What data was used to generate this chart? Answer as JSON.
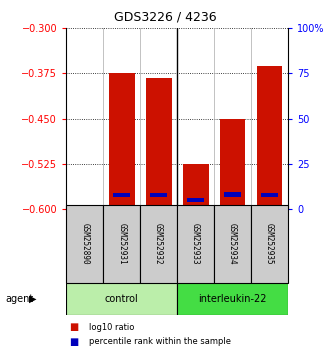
{
  "title": "GDS3226 / 4236",
  "samples": [
    "GSM252890",
    "GSM252931",
    "GSM252932",
    "GSM252933",
    "GSM252934",
    "GSM252935"
  ],
  "groups": [
    "control",
    "control",
    "control",
    "interleukin-22",
    "interleukin-22",
    "interleukin-22"
  ],
  "log10_ratio": [
    -0.598,
    -0.375,
    -0.382,
    -0.525,
    -0.45,
    -0.362
  ],
  "percentile_rank_pct": [
    0.5,
    7.5,
    7.5,
    5.0,
    8.0,
    7.5
  ],
  "ylim_left": [
    -0.6,
    -0.3
  ],
  "ylim_right": [
    0,
    100
  ],
  "yticks_left": [
    -0.6,
    -0.525,
    -0.45,
    -0.375,
    -0.3
  ],
  "yticks_right": [
    0,
    25,
    50,
    75,
    100
  ],
  "base_value": -0.6,
  "bar_width": 0.7,
  "red_color": "#cc1100",
  "blue_color": "#0000bb",
  "control_color": "#bbeeaa",
  "interleukin_color": "#44dd44",
  "label_box_color": "#cccccc",
  "legend_red": "log10 ratio",
  "legend_blue": "percentile rank within the sample",
  "agent_label": "agent",
  "fig_width": 3.31,
  "fig_height": 3.54,
  "dpi": 100
}
